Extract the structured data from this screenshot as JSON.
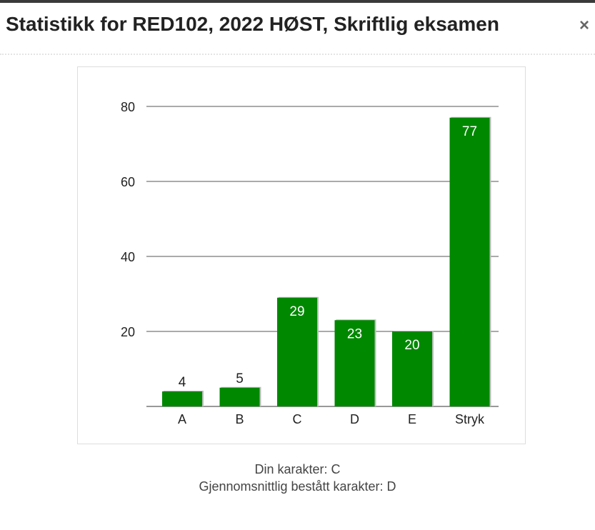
{
  "dialog": {
    "title": "Statistikk for RED102, 2022 HØST, Skriftlig eksamen",
    "close_label": "×"
  },
  "chart_data": {
    "type": "bar",
    "categories": [
      "A",
      "B",
      "C",
      "D",
      "E",
      "Stryk"
    ],
    "values": [
      4,
      5,
      29,
      23,
      20,
      77
    ],
    "ylim": [
      0,
      80
    ],
    "yticks": [
      20,
      40,
      60,
      80
    ],
    "grid": true,
    "legend": "none",
    "bar_color": "#008800",
    "label_inside_color": "#ffffff",
    "label_outside_color": "#222222"
  },
  "footer": {
    "your_grade": "Din karakter: C",
    "average_grade": "Gjennomsnittlig bestått karakter: D"
  }
}
